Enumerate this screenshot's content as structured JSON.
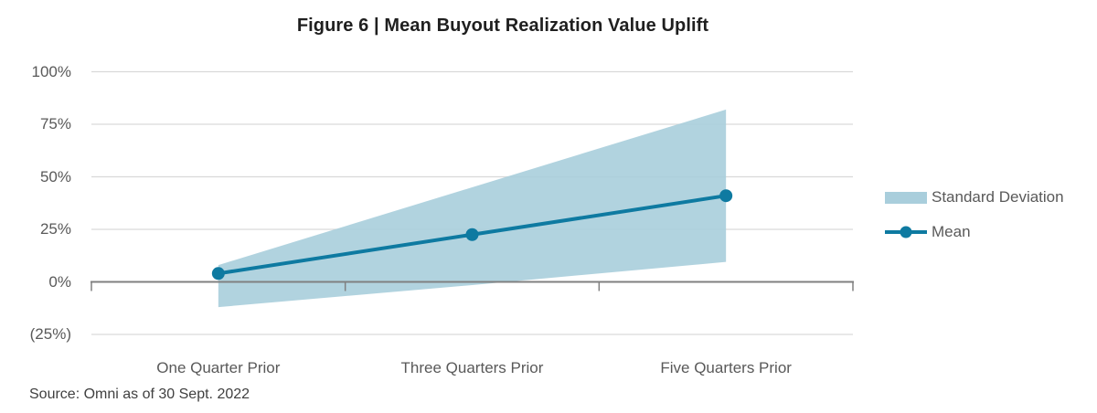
{
  "title": "Figure 6 | Mean Buyout Realization Value Uplift",
  "source_note": "Source: Omni as of 30 Sept. 2022",
  "legend": {
    "band_label": "Standard Deviation",
    "mean_label": "Mean"
  },
  "colors": {
    "band": "#A9CEDC",
    "line": "#0E7AA1",
    "gridline": "#D9D9D9",
    "axis": "#808080",
    "tick_text": "#595959",
    "title_text": "#1F1F1F",
    "source_text": "#404040"
  },
  "chart_data": {
    "type": "line",
    "title": "Figure 6 | Mean Buyout Realization Value Uplift",
    "categories": [
      "One Quarter Prior",
      "Three Quarters Prior",
      "Five Quarters Prior"
    ],
    "series": [
      {
        "name": "Standard Deviation",
        "type": "band",
        "upper": [
          8,
          45,
          82
        ],
        "lower": [
          -12,
          -1.5,
          9.5
        ]
      },
      {
        "name": "Mean",
        "type": "line",
        "values": [
          4,
          22.5,
          41
        ]
      }
    ],
    "y_ticks": [
      {
        "label": "100%",
        "value": 100
      },
      {
        "label": "75%",
        "value": 75
      },
      {
        "label": "50%",
        "value": 50
      },
      {
        "label": "25%",
        "value": 25
      },
      {
        "label": "0%",
        "value": 0
      },
      {
        "label": "(25%)",
        "value": -25
      }
    ],
    "ylim": [
      -25,
      100
    ],
    "grid": true,
    "legend_position": "right"
  }
}
